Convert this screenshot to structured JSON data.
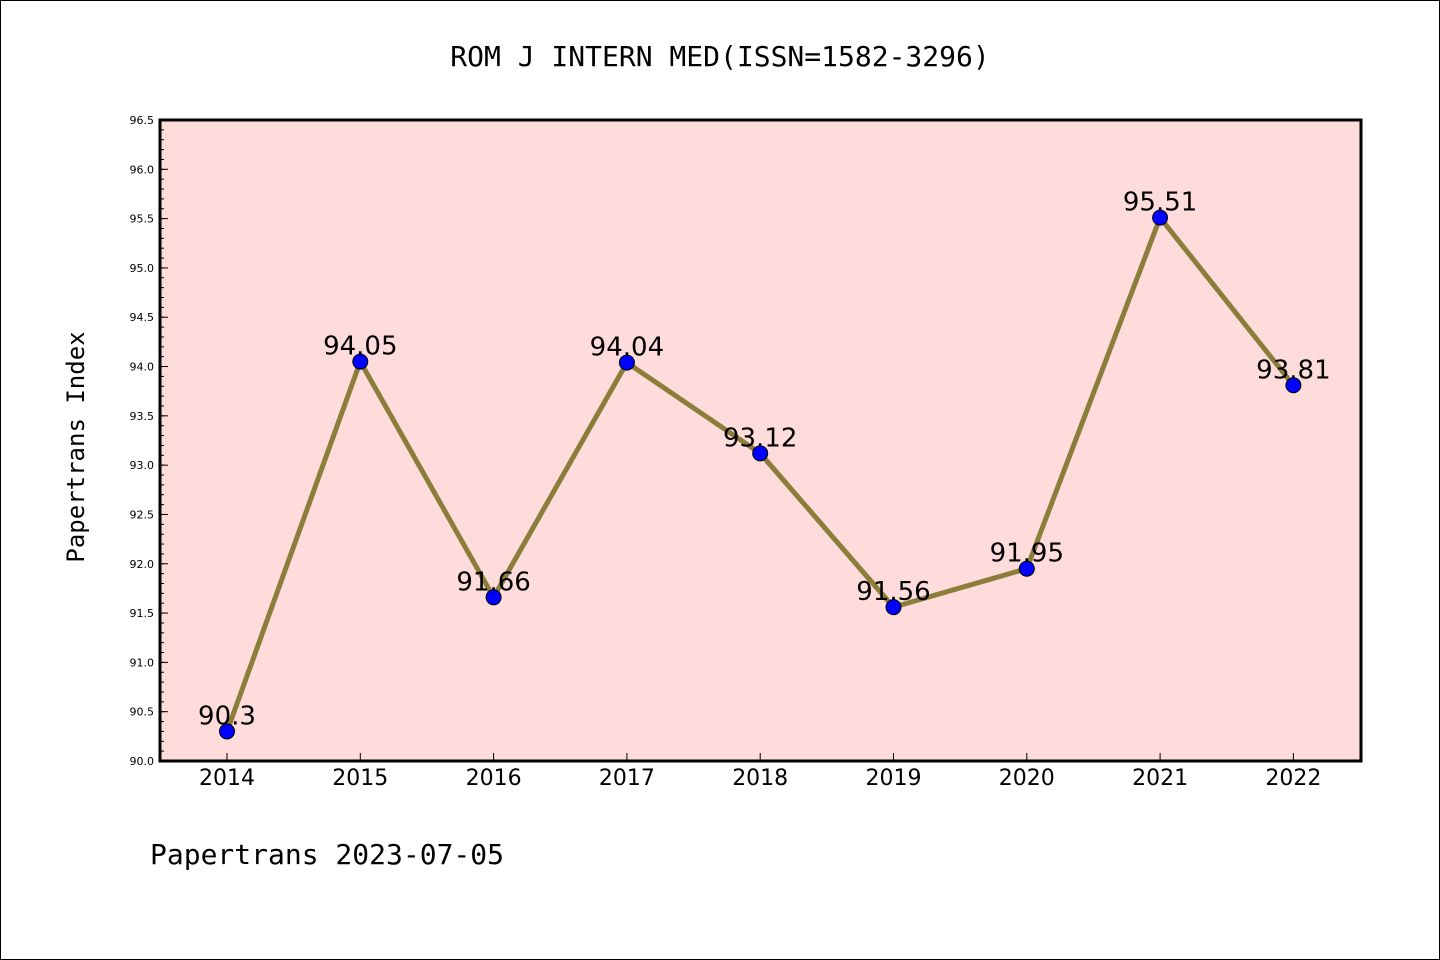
{
  "chart_data": {
    "type": "line",
    "title": "ROM J INTERN MED(ISSN=1582-3296)",
    "ylabel": "Papertrans Index",
    "footer": "Papertrans 2023-07-05",
    "categories": [
      "2014",
      "2015",
      "2016",
      "2017",
      "2018",
      "2019",
      "2020",
      "2021",
      "2022"
    ],
    "values": [
      90.3,
      94.05,
      91.66,
      94.04,
      93.12,
      91.56,
      91.95,
      95.51,
      93.81
    ],
    "data_labels": [
      "90.3",
      "94.05",
      "91.66",
      "94.04",
      "93.12",
      "91.56",
      "91.95",
      "95.51",
      "93.81"
    ],
    "ylim": [
      90.0,
      96.5
    ],
    "yticks": [
      "90.0",
      "90.5",
      "91.0",
      "91.5",
      "92.0",
      "92.5",
      "93.0",
      "93.5",
      "94.0",
      "94.5",
      "95.0",
      "95.5",
      "96.0",
      "96.5"
    ],
    "grid": false,
    "colors": {
      "plot_background": "#ffdcdc",
      "line": "#8b7d3a",
      "marker": "#0000ff"
    }
  }
}
